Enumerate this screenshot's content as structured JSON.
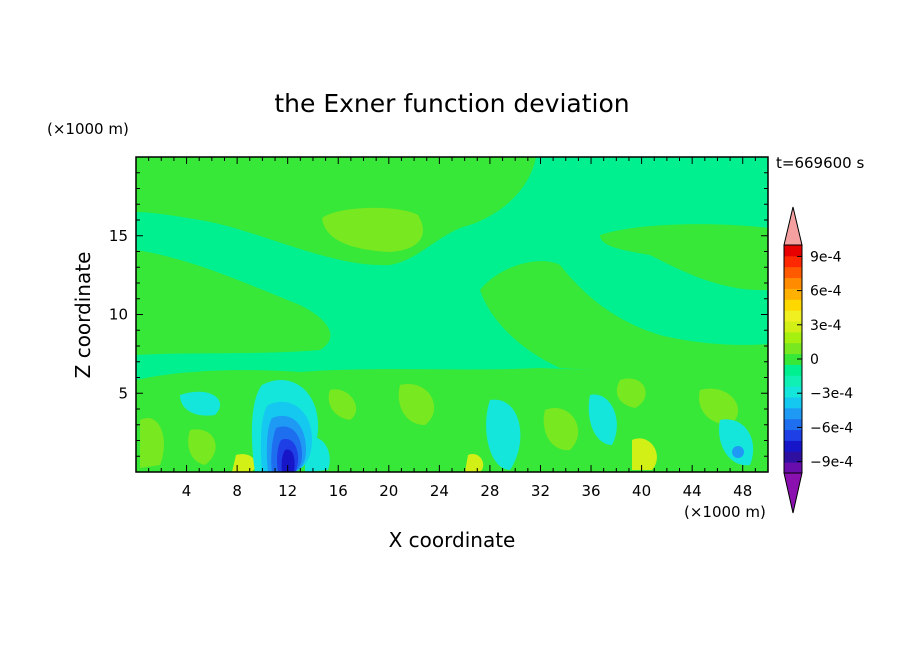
{
  "chart_data": {
    "type": "heatmap",
    "title": "the Exner function deviation",
    "xlabel": "X coordinate",
    "ylabel": "Z coordinate",
    "x_unit": "(×1000 m)",
    "y_unit": "(×1000 m)",
    "time_label": "t=669600 s",
    "xlim": [
      0,
      50
    ],
    "ylim": [
      0,
      20
    ],
    "x_ticks": [
      4,
      8,
      12,
      16,
      20,
      24,
      28,
      32,
      36,
      40,
      44,
      48
    ],
    "y_ticks": [
      5,
      10,
      15
    ],
    "colorbar": {
      "levels": [
        -0.001,
        -0.0009,
        -0.0008,
        -0.0007,
        -0.0006,
        -0.0005,
        -0.0004,
        -0.0003,
        -0.0002,
        -0.0001,
        0,
        0.0001,
        0.0002,
        0.0003,
        0.0004,
        0.0005,
        0.0006,
        0.0007,
        0.0008,
        0.0009,
        0.001
      ],
      "colors": [
        "#6a0dad",
        "#2e0fa0",
        "#1616c8",
        "#1e3ee6",
        "#1e6ef0",
        "#1e9af5",
        "#14c8f0",
        "#14e6dc",
        "#10f0b4",
        "#00f090",
        "#38e838",
        "#78e820",
        "#a6f010",
        "#d2f016",
        "#f0f020",
        "#ffd800",
        "#ffb000",
        "#ff8c00",
        "#ff5a00",
        "#ff2800",
        "#e80000"
      ],
      "under_color": "#8a10b0",
      "over_color": "#f4a0a0",
      "tick_labels": [
        "9e-4",
        "6e-4",
        "3e-4",
        "0",
        "−3e-4",
        "−6e-4",
        "−9e-4"
      ],
      "tick_values": [
        0.0009,
        0.0006,
        0.0003,
        0,
        -0.0003,
        -0.0006,
        -0.0009
      ]
    }
  }
}
